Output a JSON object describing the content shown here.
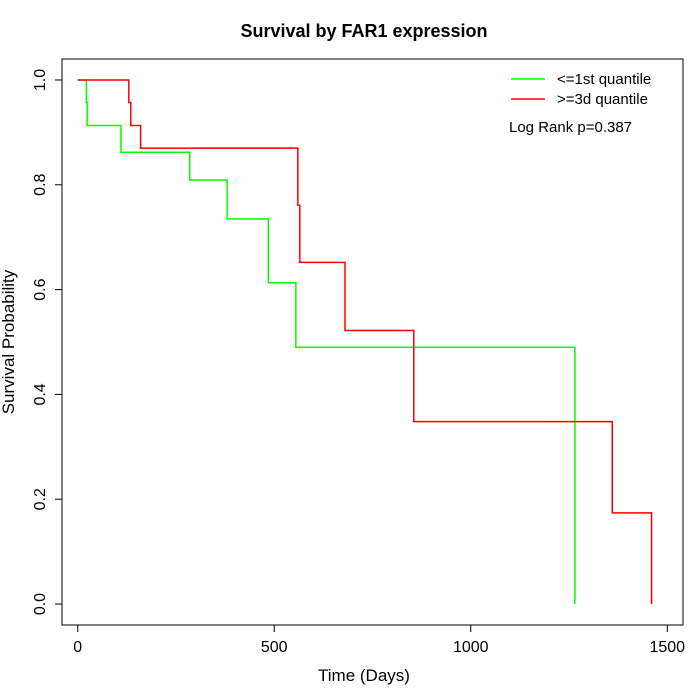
{
  "chart_data": {
    "type": "line",
    "step": true,
    "title": "Survival by FAR1 expression",
    "xlabel": "Time (Days)",
    "ylabel": "Survival Probability",
    "xlim": [
      -40,
      1540
    ],
    "ylim": [
      -0.04,
      1.04
    ],
    "xticks": [
      0,
      500,
      1000,
      1500
    ],
    "yticks": [
      0.0,
      0.2,
      0.4,
      0.6,
      0.8,
      1.0
    ],
    "xtick_labels": [
      "0",
      "500",
      "1000",
      "1500"
    ],
    "ytick_labels": [
      "0.0",
      "0.2",
      "0.4",
      "0.6",
      "0.8",
      "1.0"
    ],
    "grid": false,
    "legend_position": "top-right",
    "annotation": "Log Rank p=0.387",
    "series": [
      {
        "name": "<=1st quantile",
        "color": "#00ff00",
        "x": [
          0,
          22,
          24,
          110,
          285,
          380,
          485,
          555,
          1265
        ],
        "y": [
          1.0,
          0.957,
          0.913,
          0.862,
          0.809,
          0.735,
          0.613,
          0.49,
          0.0
        ]
      },
      {
        "name": ">=3d quantile",
        "color": "#ff0000",
        "x": [
          0,
          130,
          135,
          160,
          560,
          565,
          680,
          855,
          1360,
          1460
        ],
        "y": [
          1.0,
          0.957,
          0.913,
          0.87,
          0.761,
          0.652,
          0.522,
          0.348,
          0.174,
          0.0
        ]
      }
    ]
  }
}
